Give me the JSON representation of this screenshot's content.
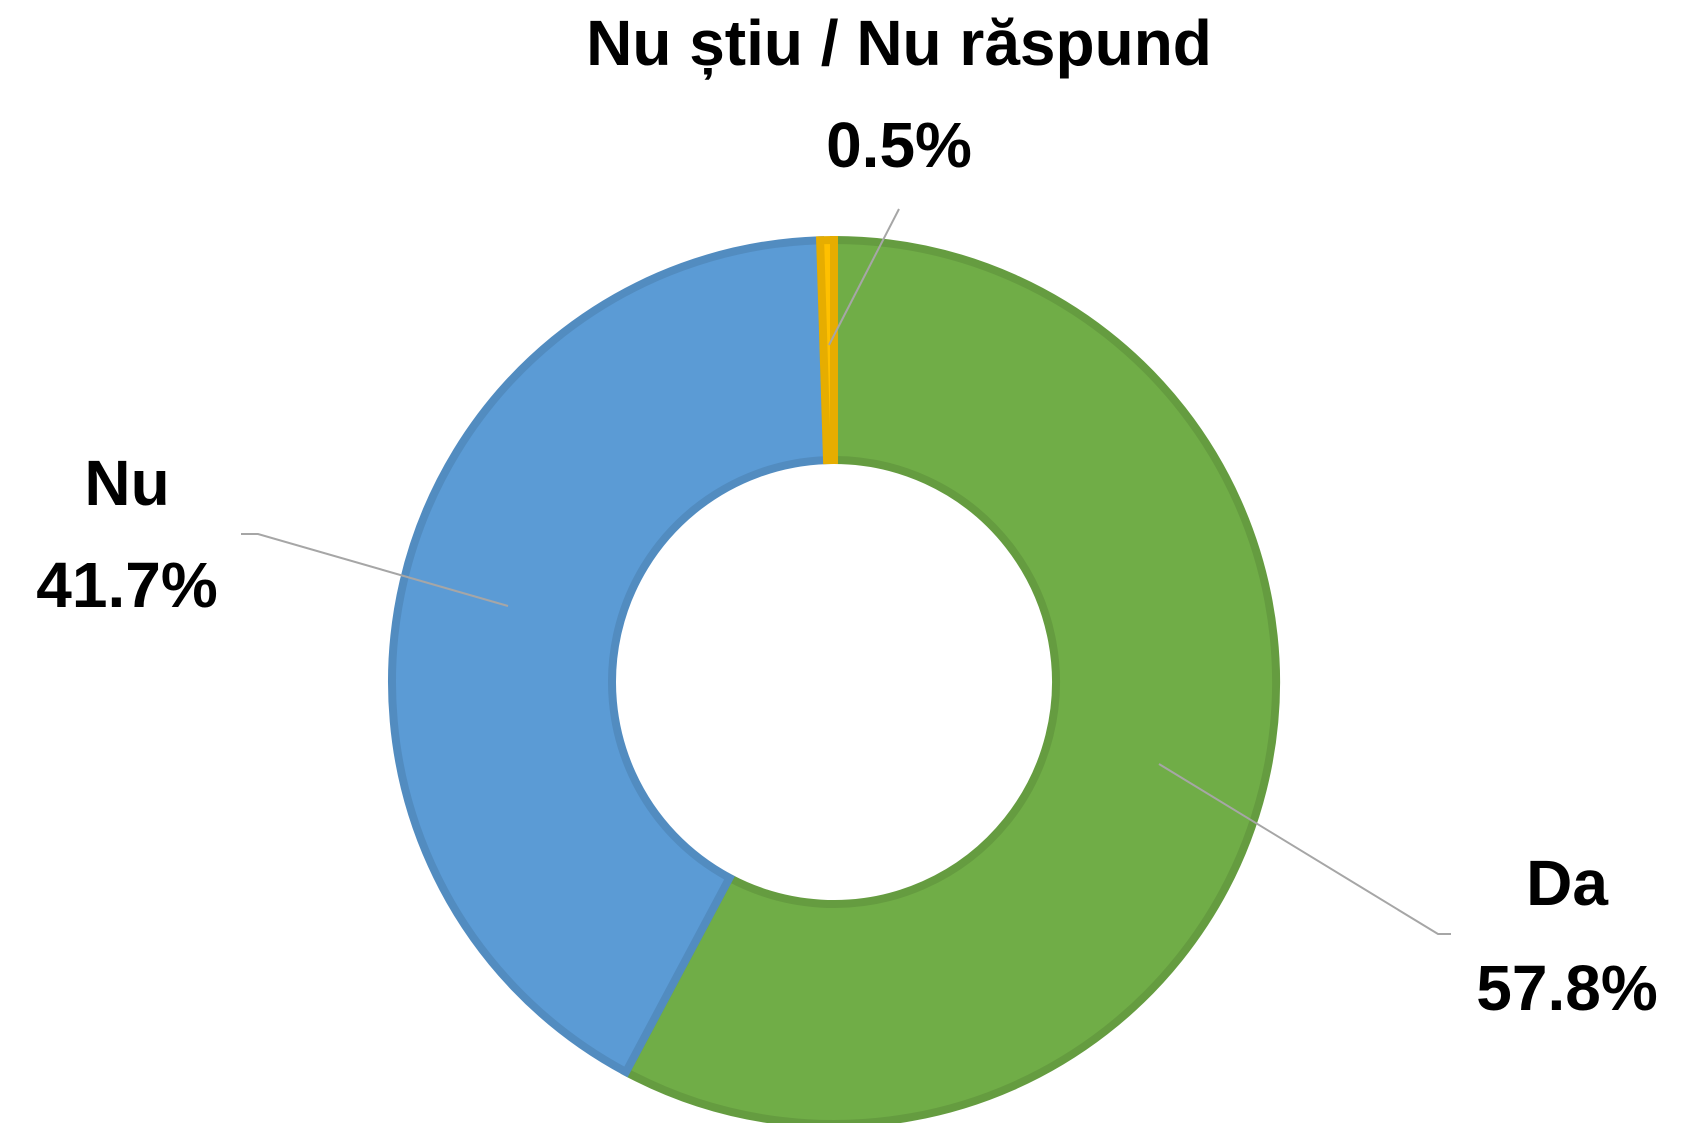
{
  "chart_data": {
    "type": "donut",
    "categories": [
      "Da",
      "Nu",
      "Nu știu / Nu răspund"
    ],
    "values": [
      57.8,
      41.7,
      0.5
    ],
    "value_labels": [
      "57.8%",
      "41.7%",
      "0.5%"
    ],
    "colors": [
      "#70ad47",
      "#5b9bd5",
      "#ffc000"
    ]
  }
}
